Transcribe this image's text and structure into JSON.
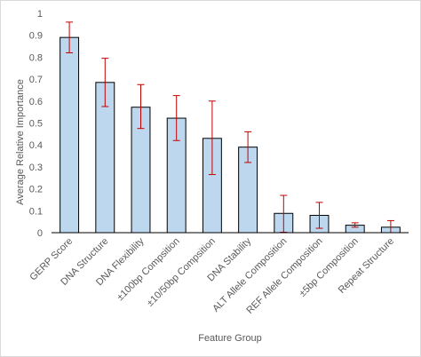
{
  "chart_data": {
    "type": "bar",
    "categories": [
      "GERP Score",
      "DNA Structure",
      "DNA Flexibility",
      "±100bp Compsition",
      "±10/50bp Compsition",
      "DNA Stability",
      "ALT Allele Composition",
      "REF Allele Composition",
      "±5bp Composition",
      "Repeat Structure"
    ],
    "values": [
      0.89,
      0.685,
      0.572,
      0.522,
      0.43,
      0.39,
      0.088,
      0.079,
      0.034,
      0.025
    ],
    "error_low": [
      0.82,
      0.575,
      0.475,
      0.42,
      0.265,
      0.32,
      0.002,
      0.02,
      0.025,
      0.0
    ],
    "error_high": [
      0.96,
      0.795,
      0.675,
      0.625,
      0.6,
      0.46,
      0.17,
      0.138,
      0.045,
      0.055
    ],
    "xlabel": "Feature Group",
    "ylabel": "Average Relative Importance",
    "ylim": [
      0,
      1
    ],
    "yticks": [
      "0",
      "0.1",
      "0.2",
      "0.3",
      "0.4",
      "0.5",
      "0.6",
      "0.7",
      "0.8",
      "0.9",
      "1"
    ],
    "grid": false,
    "legend": "none",
    "colors": {
      "bar_fill": "#bdd7ee",
      "bar_stroke": "#000000",
      "error_bar": "#c00000"
    }
  }
}
